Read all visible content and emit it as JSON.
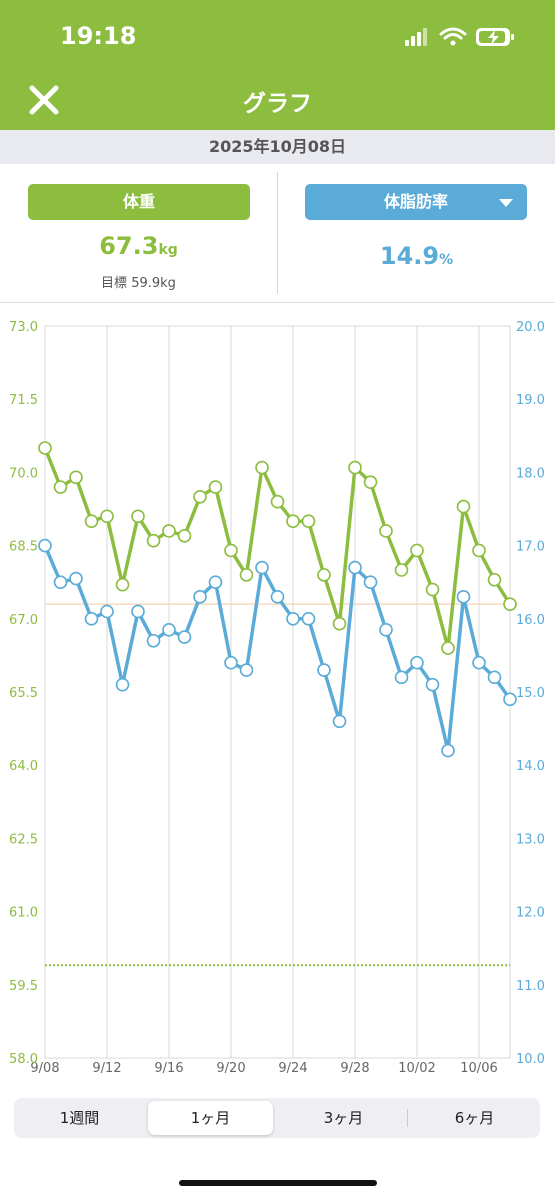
{
  "status": {
    "time": "19:18"
  },
  "header": {
    "title": "グラフ"
  },
  "date": "2025年10月08日",
  "weight_panel": {
    "label": "体重",
    "value": "67.3",
    "unit": "kg",
    "goal_label": "目標",
    "goal_value": "59.9kg"
  },
  "fat_panel": {
    "label": "体脂肪率",
    "value": "14.9",
    "unit": "%"
  },
  "colors": {
    "green": "#8cbd3f",
    "blue": "#5aabd8",
    "grid": "#d9d9d9",
    "goal_line": "#f2c9a0"
  },
  "chart_data": {
    "type": "line",
    "x": [
      "9/08",
      "9/09",
      "9/10",
      "9/11",
      "9/12",
      "9/13",
      "9/14",
      "9/15",
      "9/16",
      "9/17",
      "9/18",
      "9/19",
      "9/20",
      "9/21",
      "9/22",
      "9/23",
      "9/24",
      "9/25",
      "9/26",
      "9/27",
      "9/28",
      "9/29",
      "9/30",
      "10/01",
      "10/02",
      "10/03",
      "10/04",
      "10/05",
      "10/06",
      "10/07",
      "10/08"
    ],
    "x_tick_labels": [
      "9/08",
      "9/12",
      "9/16",
      "9/20",
      "9/24",
      "9/28",
      "10/02",
      "10/06"
    ],
    "left_axis": {
      "range": [
        58.0,
        73.0
      ],
      "ticks": [
        "73.0",
        "71.5",
        "70.0",
        "68.5",
        "67.0",
        "65.5",
        "64.0",
        "62.5",
        "61.0",
        "59.5",
        "58.0"
      ]
    },
    "right_axis": {
      "range": [
        10.0,
        20.0
      ],
      "ticks": [
        "20.0",
        "19.0",
        "18.0",
        "17.0",
        "16.0",
        "15.0",
        "14.0",
        "13.0",
        "12.0",
        "11.0",
        "10.0"
      ]
    },
    "goal_weight": 59.9,
    "current_weight": 67.3,
    "series": [
      {
        "axis": "left",
        "values": [
          70.5,
          69.7,
          69.9,
          69.0,
          69.1,
          67.7,
          69.1,
          68.6,
          68.8,
          68.7,
          69.5,
          69.7,
          68.4,
          67.9,
          70.1,
          69.4,
          69.0,
          69.0,
          67.9,
          66.9,
          70.1,
          69.8,
          68.8,
          68.0,
          68.4,
          67.6,
          66.4,
          69.3,
          68.4,
          67.8,
          67.3
        ]
      },
      {
        "axis": "right",
        "values": [
          17.0,
          16.5,
          16.55,
          16.0,
          16.1,
          15.1,
          16.1,
          15.7,
          15.85,
          15.75,
          16.3,
          16.5,
          15.4,
          15.3,
          16.7,
          16.3,
          16.0,
          16.0,
          15.3,
          14.6,
          16.7,
          16.5,
          15.85,
          15.2,
          15.4,
          15.1,
          14.2,
          16.3,
          15.4,
          15.2,
          14.9
        ]
      }
    ]
  },
  "tabs": [
    {
      "label": "1週間",
      "active": false
    },
    {
      "label": "1ヶ月",
      "active": true
    },
    {
      "label": "3ヶ月",
      "active": false
    },
    {
      "label": "6ヶ月",
      "active": false
    }
  ]
}
